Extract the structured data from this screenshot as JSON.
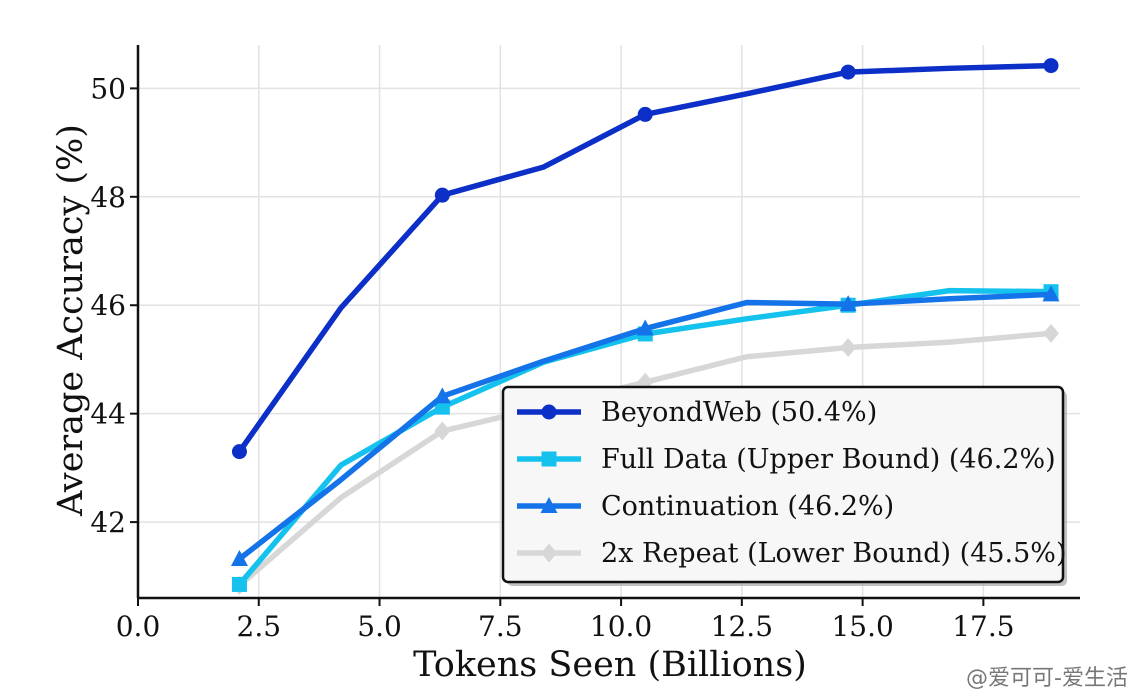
{
  "chart_data": {
    "type": "line",
    "title": "",
    "xlabel": "Tokens Seen (Billions)",
    "ylabel": "Average Accuracy (%)",
    "xlim": [
      0,
      19.5
    ],
    "ylim": [
      40.6,
      50.8
    ],
    "x_ticks": [
      "0.0",
      "2.5",
      "5.0",
      "7.5",
      "10.0",
      "12.5",
      "15.0",
      "17.5"
    ],
    "y_ticks": [
      "42",
      "44",
      "46",
      "48",
      "50"
    ],
    "grid": true,
    "legend_position": "lower-right",
    "series": [
      {
        "name": "BeyondWeb (50.4%)",
        "color": "#0c2fc7",
        "marker": "circle",
        "x": [
          2.1,
          4.2,
          6.3,
          8.4,
          10.5,
          12.6,
          14.7,
          16.8,
          18.9
        ],
        "y": [
          43.3,
          45.95,
          48.03,
          48.55,
          49.52,
          49.9,
          50.3,
          50.37,
          50.42
        ],
        "marked_x": [
          2.1,
          6.3,
          10.5,
          14.7,
          18.9
        ]
      },
      {
        "name": "Full Data (Upper Bound) (46.2%)",
        "color": "#14c2ed",
        "marker": "square",
        "x": [
          2.1,
          4.2,
          6.3,
          8.4,
          10.5,
          12.6,
          14.7,
          16.8,
          18.9
        ],
        "y": [
          40.85,
          43.05,
          44.12,
          44.95,
          45.47,
          45.75,
          46.0,
          46.27,
          46.25
        ],
        "marked_x": [
          2.1,
          6.3,
          10.5,
          14.7,
          18.9
        ]
      },
      {
        "name": "Continuation (46.2%)",
        "color": "#1473e8",
        "marker": "triangle",
        "x": [
          2.1,
          4.2,
          6.3,
          8.4,
          10.5,
          12.6,
          14.7,
          16.8,
          18.9
        ],
        "y": [
          41.32,
          42.78,
          44.32,
          44.97,
          45.57,
          46.05,
          46.02,
          46.12,
          46.2
        ],
        "marked_x": [
          2.1,
          6.3,
          10.5,
          14.7,
          18.9
        ]
      },
      {
        "name": "2x Repeat (Lower Bound) (45.5%)",
        "color": "#d7d7d7",
        "marker": "diamond",
        "x": [
          2.1,
          4.2,
          6.3,
          8.4,
          10.5,
          12.6,
          14.7,
          16.8,
          18.9
        ],
        "y": [
          40.83,
          42.45,
          43.68,
          44.12,
          44.58,
          45.05,
          45.22,
          45.32,
          45.48
        ],
        "marked_x": [
          2.1,
          6.3,
          10.5,
          14.7,
          18.9
        ]
      }
    ]
  },
  "watermark": "@爱可可-爱生活"
}
